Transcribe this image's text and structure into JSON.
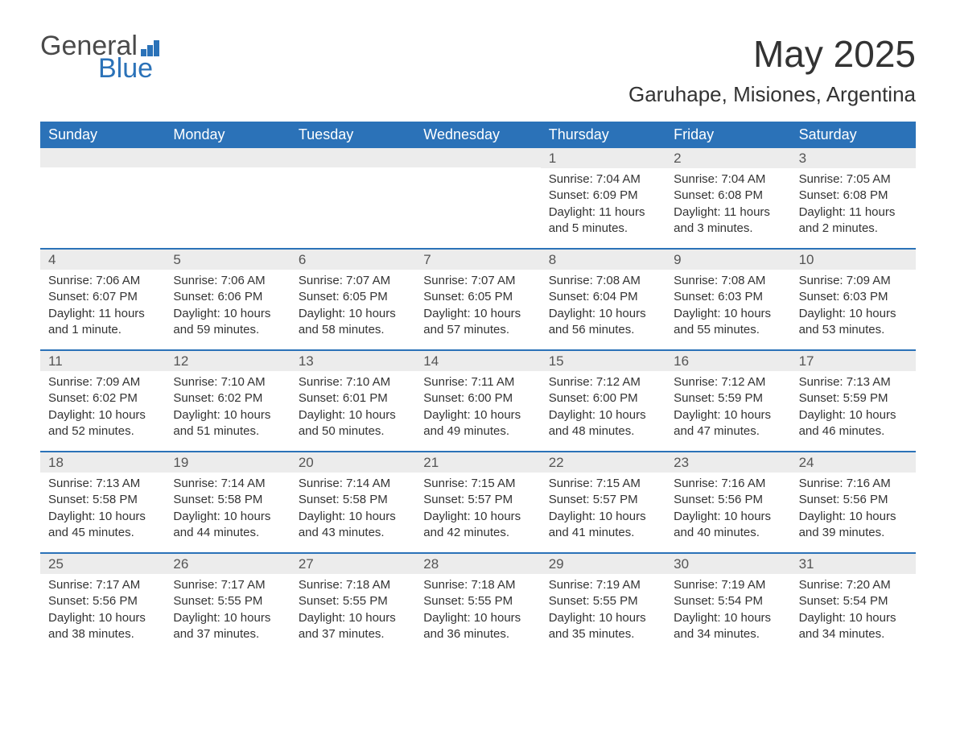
{
  "logo": {
    "general": "General",
    "blue": "Blue",
    "general_color": "#4a4a4a",
    "blue_color": "#2b72b8"
  },
  "title": "May 2025",
  "location": "Garuhape, Misiones, Argentina",
  "colors": {
    "header_bg": "#2b72b8",
    "header_text": "#ffffff",
    "daynum_bg": "#ececec",
    "text": "#333333",
    "week_border": "#2b72b8"
  },
  "font": {
    "title_size": 46,
    "location_size": 26,
    "dayheader_size": 18,
    "daynum_size": 17,
    "body_size": 15
  },
  "day_headers": [
    "Sunday",
    "Monday",
    "Tuesday",
    "Wednesday",
    "Thursday",
    "Friday",
    "Saturday"
  ],
  "weeks": [
    [
      {
        "num": "",
        "sunrise": "",
        "sunset": "",
        "daylight": ""
      },
      {
        "num": "",
        "sunrise": "",
        "sunset": "",
        "daylight": ""
      },
      {
        "num": "",
        "sunrise": "",
        "sunset": "",
        "daylight": ""
      },
      {
        "num": "",
        "sunrise": "",
        "sunset": "",
        "daylight": ""
      },
      {
        "num": "1",
        "sunrise": "Sunrise: 7:04 AM",
        "sunset": "Sunset: 6:09 PM",
        "daylight": "Daylight: 11 hours and 5 minutes."
      },
      {
        "num": "2",
        "sunrise": "Sunrise: 7:04 AM",
        "sunset": "Sunset: 6:08 PM",
        "daylight": "Daylight: 11 hours and 3 minutes."
      },
      {
        "num": "3",
        "sunrise": "Sunrise: 7:05 AM",
        "sunset": "Sunset: 6:08 PM",
        "daylight": "Daylight: 11 hours and 2 minutes."
      }
    ],
    [
      {
        "num": "4",
        "sunrise": "Sunrise: 7:06 AM",
        "sunset": "Sunset: 6:07 PM",
        "daylight": "Daylight: 11 hours and 1 minute."
      },
      {
        "num": "5",
        "sunrise": "Sunrise: 7:06 AM",
        "sunset": "Sunset: 6:06 PM",
        "daylight": "Daylight: 10 hours and 59 minutes."
      },
      {
        "num": "6",
        "sunrise": "Sunrise: 7:07 AM",
        "sunset": "Sunset: 6:05 PM",
        "daylight": "Daylight: 10 hours and 58 minutes."
      },
      {
        "num": "7",
        "sunrise": "Sunrise: 7:07 AM",
        "sunset": "Sunset: 6:05 PM",
        "daylight": "Daylight: 10 hours and 57 minutes."
      },
      {
        "num": "8",
        "sunrise": "Sunrise: 7:08 AM",
        "sunset": "Sunset: 6:04 PM",
        "daylight": "Daylight: 10 hours and 56 minutes."
      },
      {
        "num": "9",
        "sunrise": "Sunrise: 7:08 AM",
        "sunset": "Sunset: 6:03 PM",
        "daylight": "Daylight: 10 hours and 55 minutes."
      },
      {
        "num": "10",
        "sunrise": "Sunrise: 7:09 AM",
        "sunset": "Sunset: 6:03 PM",
        "daylight": "Daylight: 10 hours and 53 minutes."
      }
    ],
    [
      {
        "num": "11",
        "sunrise": "Sunrise: 7:09 AM",
        "sunset": "Sunset: 6:02 PM",
        "daylight": "Daylight: 10 hours and 52 minutes."
      },
      {
        "num": "12",
        "sunrise": "Sunrise: 7:10 AM",
        "sunset": "Sunset: 6:02 PM",
        "daylight": "Daylight: 10 hours and 51 minutes."
      },
      {
        "num": "13",
        "sunrise": "Sunrise: 7:10 AM",
        "sunset": "Sunset: 6:01 PM",
        "daylight": "Daylight: 10 hours and 50 minutes."
      },
      {
        "num": "14",
        "sunrise": "Sunrise: 7:11 AM",
        "sunset": "Sunset: 6:00 PM",
        "daylight": "Daylight: 10 hours and 49 minutes."
      },
      {
        "num": "15",
        "sunrise": "Sunrise: 7:12 AM",
        "sunset": "Sunset: 6:00 PM",
        "daylight": "Daylight: 10 hours and 48 minutes."
      },
      {
        "num": "16",
        "sunrise": "Sunrise: 7:12 AM",
        "sunset": "Sunset: 5:59 PM",
        "daylight": "Daylight: 10 hours and 47 minutes."
      },
      {
        "num": "17",
        "sunrise": "Sunrise: 7:13 AM",
        "sunset": "Sunset: 5:59 PM",
        "daylight": "Daylight: 10 hours and 46 minutes."
      }
    ],
    [
      {
        "num": "18",
        "sunrise": "Sunrise: 7:13 AM",
        "sunset": "Sunset: 5:58 PM",
        "daylight": "Daylight: 10 hours and 45 minutes."
      },
      {
        "num": "19",
        "sunrise": "Sunrise: 7:14 AM",
        "sunset": "Sunset: 5:58 PM",
        "daylight": "Daylight: 10 hours and 44 minutes."
      },
      {
        "num": "20",
        "sunrise": "Sunrise: 7:14 AM",
        "sunset": "Sunset: 5:58 PM",
        "daylight": "Daylight: 10 hours and 43 minutes."
      },
      {
        "num": "21",
        "sunrise": "Sunrise: 7:15 AM",
        "sunset": "Sunset: 5:57 PM",
        "daylight": "Daylight: 10 hours and 42 minutes."
      },
      {
        "num": "22",
        "sunrise": "Sunrise: 7:15 AM",
        "sunset": "Sunset: 5:57 PM",
        "daylight": "Daylight: 10 hours and 41 minutes."
      },
      {
        "num": "23",
        "sunrise": "Sunrise: 7:16 AM",
        "sunset": "Sunset: 5:56 PM",
        "daylight": "Daylight: 10 hours and 40 minutes."
      },
      {
        "num": "24",
        "sunrise": "Sunrise: 7:16 AM",
        "sunset": "Sunset: 5:56 PM",
        "daylight": "Daylight: 10 hours and 39 minutes."
      }
    ],
    [
      {
        "num": "25",
        "sunrise": "Sunrise: 7:17 AM",
        "sunset": "Sunset: 5:56 PM",
        "daylight": "Daylight: 10 hours and 38 minutes."
      },
      {
        "num": "26",
        "sunrise": "Sunrise: 7:17 AM",
        "sunset": "Sunset: 5:55 PM",
        "daylight": "Daylight: 10 hours and 37 minutes."
      },
      {
        "num": "27",
        "sunrise": "Sunrise: 7:18 AM",
        "sunset": "Sunset: 5:55 PM",
        "daylight": "Daylight: 10 hours and 37 minutes."
      },
      {
        "num": "28",
        "sunrise": "Sunrise: 7:18 AM",
        "sunset": "Sunset: 5:55 PM",
        "daylight": "Daylight: 10 hours and 36 minutes."
      },
      {
        "num": "29",
        "sunrise": "Sunrise: 7:19 AM",
        "sunset": "Sunset: 5:55 PM",
        "daylight": "Daylight: 10 hours and 35 minutes."
      },
      {
        "num": "30",
        "sunrise": "Sunrise: 7:19 AM",
        "sunset": "Sunset: 5:54 PM",
        "daylight": "Daylight: 10 hours and 34 minutes."
      },
      {
        "num": "31",
        "sunrise": "Sunrise: 7:20 AM",
        "sunset": "Sunset: 5:54 PM",
        "daylight": "Daylight: 10 hours and 34 minutes."
      }
    ]
  ]
}
